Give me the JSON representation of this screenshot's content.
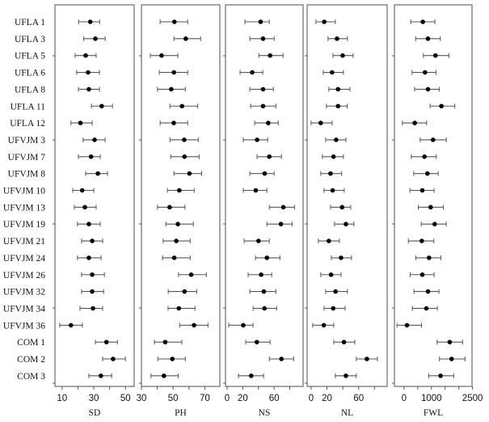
{
  "chart_data": {
    "type": "forest",
    "title": "",
    "legend": null,
    "grid": false,
    "row_labels": [
      "UFLA 1",
      "UFLA 3",
      "UFLA 5",
      "UFLA 6",
      "UFLA 8",
      "UFLA 11",
      "UFLA 12",
      "UFVJM 3",
      "UFVJM 7",
      "UFVJM 8",
      "UFVJM 10",
      "UFVJM 13",
      "UFVJM 19",
      "UFVJM 21",
      "UFVJM 24",
      "UFVJM 26",
      "UFVJM 32",
      "UFVJM 34",
      "UFVJM 36",
      "COM 1",
      "COM 2",
      "COM 3"
    ],
    "panels": [
      {
        "xlabel": "SD",
        "xlim": [
          5.5,
          55.5
        ],
        "ticks": [
          10,
          20,
          30,
          40,
          50
        ],
        "tick_labels": [
          "10",
          "",
          "30",
          "",
          "50"
        ],
        "estimate": [
          27.8,
          31,
          24.9,
          26.4,
          26.9,
          35,
          21.6,
          30.5,
          28.3,
          32.6,
          22.7,
          24.4,
          26.9,
          29,
          26.9,
          29,
          29,
          29.5,
          15.6,
          38,
          42.2,
          34.5
        ],
        "lower": [
          20.4,
          23.7,
          18.2,
          19.2,
          20.3,
          28.5,
          15.6,
          23.3,
          20.3,
          24.9,
          16.7,
          17.7,
          19.7,
          22.3,
          19.7,
          22.3,
          22.3,
          21.3,
          8.5,
          31,
          35.6,
          26.9
        ],
        "upper": [
          33.7,
          37.2,
          31.5,
          33.6,
          33.6,
          41.8,
          29,
          37.2,
          34.1,
          38.7,
          30,
          31.5,
          34.1,
          35.6,
          34.6,
          36.7,
          36.2,
          35.6,
          22.8,
          44.9,
          50,
          41.3
        ]
      },
      {
        "xlabel": "PH",
        "xlim": [
          30,
          79.5
        ],
        "ticks": [
          30,
          40,
          50,
          60,
          70
        ],
        "tick_labels": [
          "30",
          "",
          "50",
          "",
          "70"
        ],
        "estimate": [
          50.8,
          58,
          42.7,
          50.5,
          48.8,
          55.6,
          50.4,
          57,
          57.2,
          60.3,
          53.9,
          47.8,
          53,
          52,
          50.7,
          61.4,
          57.2,
          53.6,
          63.2,
          45,
          49.5,
          44.2
        ],
        "lower": [
          41.8,
          50.5,
          35.6,
          41.3,
          40.1,
          48,
          41.8,
          48,
          48.5,
          50.5,
          46.4,
          40.1,
          45.4,
          43.7,
          43.3,
          53.4,
          46.9,
          46.8,
          54.1,
          38.2,
          40.3,
          36
        ],
        "upper": [
          59.2,
          67.4,
          53,
          59.2,
          57.7,
          65.4,
          59.2,
          65.9,
          66.4,
          68,
          63.3,
          57.5,
          62.8,
          60.8,
          60.8,
          71,
          64.9,
          63.8,
          72,
          55.5,
          57.7,
          53.2
        ]
      },
      {
        "xlabel": "NS",
        "xlim": [
          -2,
          97
        ],
        "ticks": [
          0,
          20,
          40,
          60,
          80
        ],
        "tick_labels": [
          "0",
          "20",
          "",
          "60",
          ""
        ],
        "estimate": [
          42.8,
          45.9,
          54.9,
          32.1,
          45.9,
          45.9,
          52.5,
          38.3,
          53.9,
          48,
          36.6,
          71.8,
          68.7,
          40.1,
          50.8,
          43.5,
          46.9,
          47.7,
          20.7,
          38,
          69.4,
          30.8
        ],
        "lower": [
          22.8,
          29,
          40.4,
          16.6,
          29,
          30.1,
          35.2,
          20.7,
          38.3,
          29,
          20.7,
          53.9,
          50.8,
          21.8,
          36.3,
          26.9,
          29,
          33.2,
          2.1,
          23.8,
          53.9,
          14.5
        ],
        "upper": [
          53.9,
          60.1,
          71.5,
          45.6,
          59.1,
          62.2,
          65.3,
          51.8,
          69.4,
          60.1,
          50.8,
          86,
          82.9,
          53.9,
          67.4,
          57,
          62.2,
          63.2,
          33.2,
          54.9,
          85,
          46.6
        ]
      },
      {
        "xlabel": "NL",
        "xlim": [
          -5,
          96
        ],
        "ticks": [
          0,
          20,
          40,
          60,
          80
        ],
        "tick_labels": [
          "0",
          "20",
          "",
          "60",
          ""
        ],
        "estimate": [
          16.6,
          32.7,
          39.8,
          26.5,
          34,
          34,
          12.2,
          31.6,
          28.3,
          24.5,
          27.2,
          39.1,
          43.9,
          22.4,
          37.8,
          25.2,
          30.9,
          27.9,
          16,
          41.5,
          70.4,
          43.9
        ],
        "lower": [
          6.1,
          21.4,
          27.6,
          15.3,
          22.4,
          19.4,
          0,
          18.4,
          14.3,
          12.2,
          16.3,
          24.5,
          29.6,
          9.2,
          25.5,
          12.2,
          18.4,
          16.3,
          2,
          28.6,
          57.1,
          30.6
        ],
        "upper": [
          30.6,
          45.9,
          53.1,
          40.8,
          49,
          45.6,
          26.5,
          43.9,
          40.8,
          38.5,
          41.8,
          50,
          54.1,
          35.7,
          51,
          37.8,
          45.9,
          42.9,
          28.6,
          55.1,
          83.7,
          57.1
        ]
      },
      {
        "xlabel": "FWL",
        "xlim": [
          -350,
          2480
        ],
        "ticks": [
          0,
          500,
          1000,
          1500,
          2000,
          2500
        ],
        "tick_labels": [
          "0",
          "",
          "1000",
          "",
          "",
          "2500"
        ],
        "estimate": [
          686,
          873,
          1147,
          765,
          873,
          1363,
          392,
          1059,
          745,
          853,
          667,
          971,
          1118,
          647,
          912,
          667,
          873,
          814,
          108,
          1667,
          1735,
          1333
        ],
        "lower": [
          245,
          422,
          706,
          294,
          382,
          951,
          -59,
          588,
          265,
          353,
          216,
          520,
          627,
          157,
          431,
          225,
          363,
          304,
          -255,
          1206,
          1294,
          902
        ],
        "upper": [
          1127,
          1324,
          1637,
          1167,
          1284,
          1853,
          824,
          1539,
          1176,
          1245,
          1098,
          1431,
          1539,
          1088,
          1343,
          1098,
          1275,
          1216,
          637,
          2137,
          2226,
          1814
        ]
      }
    ]
  },
  "layout_colors": {
    "frame": "#777777",
    "whisker": "#555555",
    "dot": "#000000"
  }
}
